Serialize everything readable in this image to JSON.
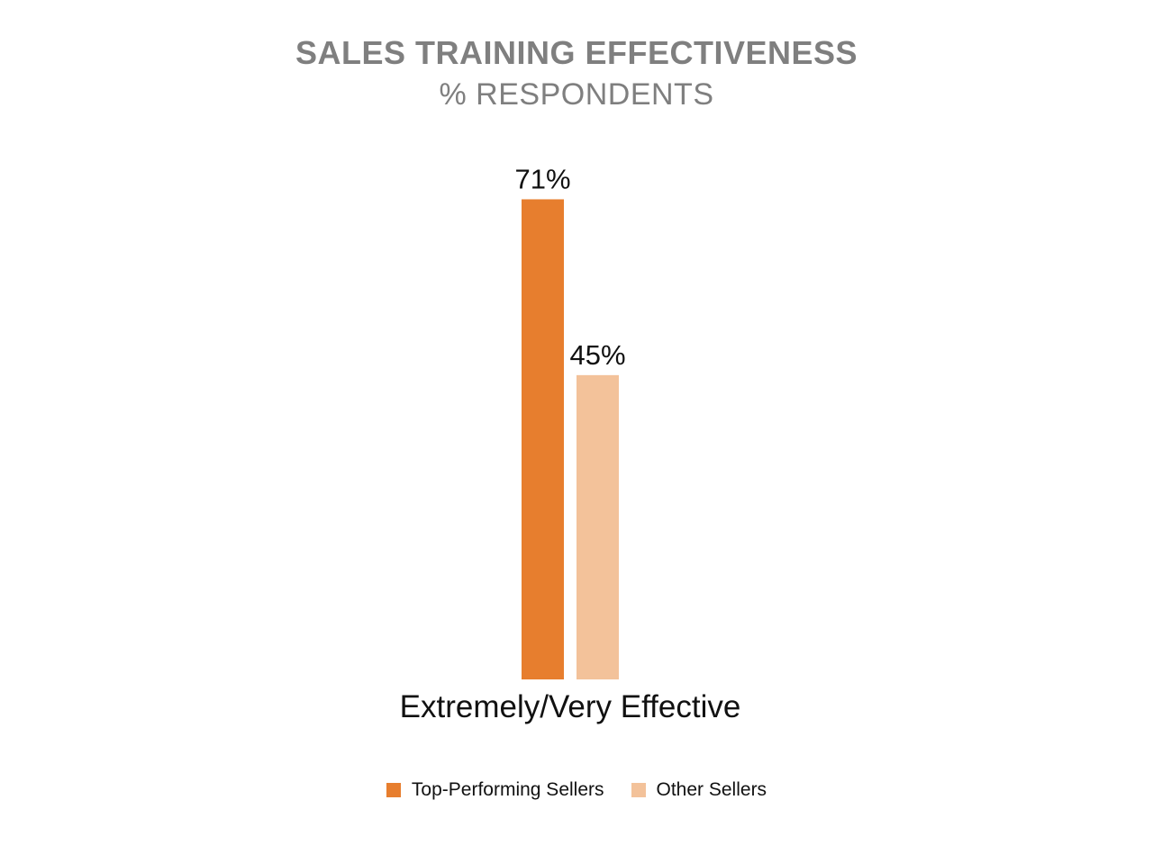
{
  "chart_data": {
    "type": "bar",
    "title": "SALES TRAINING EFFECTIVENESS",
    "subtitle": "% RESPONDENTS",
    "categories": [
      "Extremely/Very Effective"
    ],
    "series": [
      {
        "name": "Top-Performing Sellers",
        "values": [
          71
        ],
        "labels": [
          "71%"
        ],
        "color": "#E77E2E"
      },
      {
        "name": "Other Sellers",
        "values": [
          45
        ],
        "labels": [
          "45%"
        ],
        "color": "#F3C29A"
      }
    ],
    "ylim": [
      0,
      100
    ],
    "grid": false,
    "legend_position": "bottom"
  }
}
